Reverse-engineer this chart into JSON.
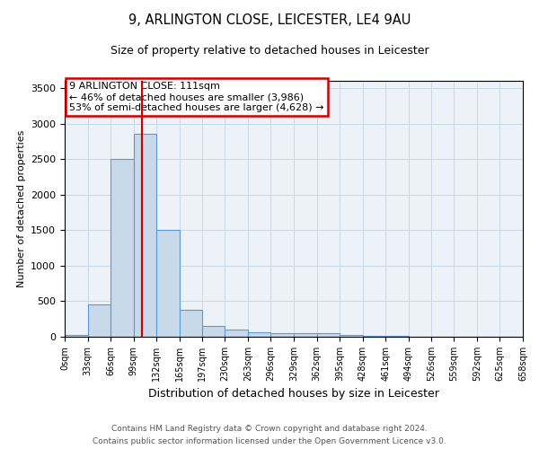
{
  "title": "9, ARLINGTON CLOSE, LEICESTER, LE4 9AU",
  "subtitle": "Size of property relative to detached houses in Leicester",
  "xlabel": "Distribution of detached houses by size in Leicester",
  "ylabel": "Number of detached properties",
  "footnote1": "Contains HM Land Registry data © Crown copyright and database right 2024.",
  "footnote2": "Contains public sector information licensed under the Open Government Licence v3.0.",
  "annotation_line1": "9 ARLINGTON CLOSE: 111sqm",
  "annotation_line2": "← 46% of detached houses are smaller (3,986)",
  "annotation_line3": "53% of semi-detached houses are larger (4,628) →",
  "bar_edges": [
    0,
    33,
    66,
    99,
    132,
    165,
    197,
    230,
    263,
    296,
    329,
    362,
    395,
    428,
    461,
    494,
    526,
    559,
    592,
    625,
    658
  ],
  "bar_heights": [
    20,
    450,
    2500,
    2850,
    1500,
    380,
    150,
    100,
    60,
    55,
    52,
    50,
    30,
    15,
    8,
    5,
    3,
    2,
    1,
    1
  ],
  "bar_color": "#c8d9ea",
  "bar_edge_color": "#5b9bd5",
  "red_line_x": 111,
  "ylim": [
    0,
    3600
  ],
  "yticks": [
    0,
    500,
    1000,
    1500,
    2000,
    2500,
    3000,
    3500
  ],
  "annotation_box_color": "#cc0000",
  "grid_color": "#c8d8e8",
  "bg_color": "#edf2f8"
}
